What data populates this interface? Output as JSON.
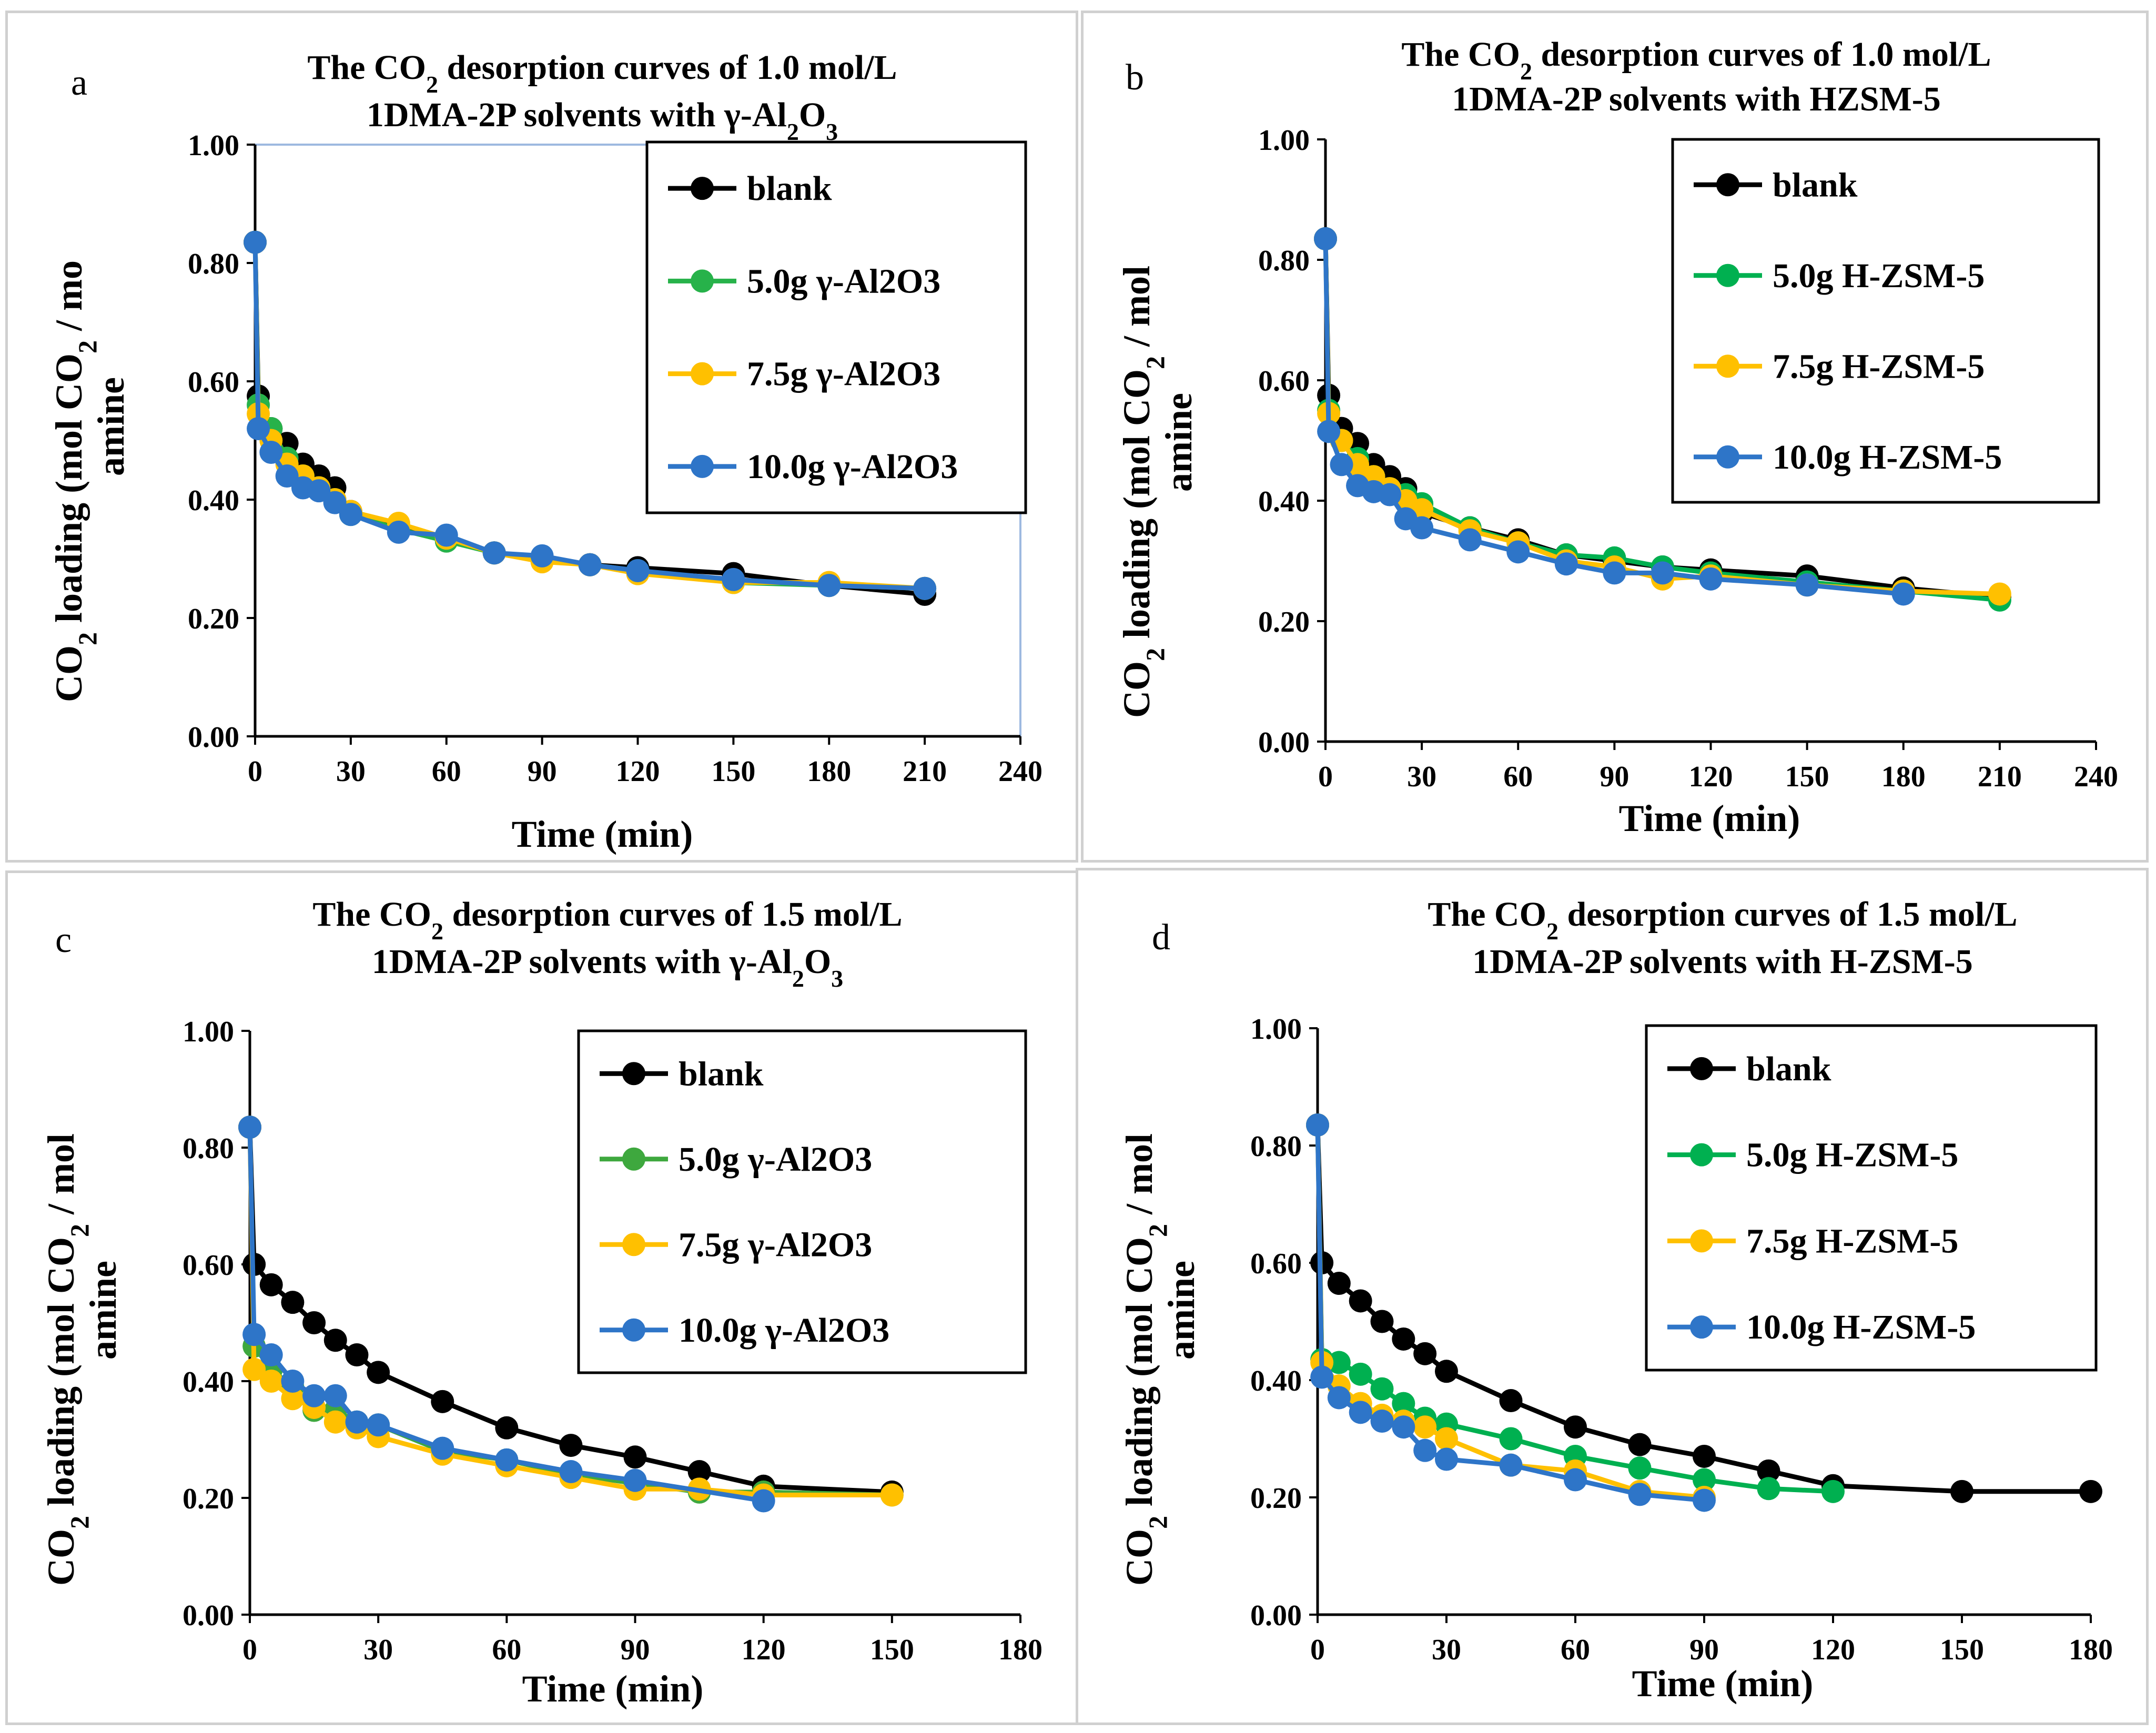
{
  "chart_data": [
    {
      "panel": "a",
      "type": "line",
      "title_line1_pre": "The CO",
      "title_line1_sub": "2",
      "title_line1_post": " desorption curves of 1.0 mol/L",
      "title_line2_pre": "1DMA-2P solvents with γ-Al",
      "title_line2_sub1": "2",
      "title_line2_mid": "O",
      "title_line2_sub2": "3",
      "xlabel": "Time (min)",
      "ylabel_pre": "CO",
      "ylabel_sub": "2",
      "ylabel_mid": " loading (mol CO",
      "ylabel_sub2": "2",
      "ylabel_post": " / mo",
      "ylabel_line2": "amine",
      "xlim": [
        0,
        240
      ],
      "ylim": [
        0,
        1.0
      ],
      "xticks": [
        "0",
        "30",
        "60",
        "90",
        "120",
        "150",
        "180",
        "210",
        "240"
      ],
      "yticks": [
        "0.00",
        "0.20",
        "0.40",
        "0.60",
        "0.80",
        "1.00"
      ],
      "series": [
        {
          "name": "blank",
          "color": "#000000",
          "x": [
            0,
            1,
            5,
            10,
            15,
            20,
            25,
            30,
            45,
            60,
            75,
            90,
            105,
            120,
            150,
            180,
            210
          ],
          "y": [
            0.835,
            0.575,
            0.52,
            0.495,
            0.46,
            0.44,
            0.42,
            0.38,
            0.355,
            0.335,
            0.31,
            0.3,
            0.29,
            0.285,
            0.275,
            0.255,
            0.24
          ]
        },
        {
          "name": "5.0g γ-Al2O3",
          "color": "#27b24a",
          "x": [
            0,
            1,
            5,
            10,
            15,
            20,
            25,
            30,
            45,
            60,
            75,
            90,
            105,
            120,
            150,
            180,
            210
          ],
          "y": [
            0.835,
            0.56,
            0.52,
            0.47,
            0.44,
            0.42,
            0.4,
            0.375,
            0.35,
            0.33,
            0.31,
            0.3,
            0.29,
            0.28,
            0.26,
            0.255,
            0.25
          ]
        },
        {
          "name": "7.5g γ-Al2O3",
          "color": "#ffc000",
          "x": [
            0,
            1,
            5,
            10,
            15,
            20,
            25,
            30,
            45,
            60,
            75,
            90,
            105,
            120,
            150,
            180,
            210
          ],
          "y": [
            0.835,
            0.545,
            0.5,
            0.46,
            0.44,
            0.42,
            0.4,
            0.38,
            0.36,
            0.335,
            0.31,
            0.295,
            0.29,
            0.275,
            0.26,
            0.26,
            0.25
          ]
        },
        {
          "name": "10.0g γ-Al2O3",
          "color": "#2e75c8",
          "x": [
            0,
            1,
            5,
            10,
            15,
            20,
            25,
            30,
            45,
            60,
            75,
            90,
            105,
            120,
            150,
            180,
            210
          ],
          "y": [
            0.835,
            0.52,
            0.48,
            0.44,
            0.42,
            0.415,
            0.395,
            0.375,
            0.345,
            0.34,
            0.31,
            0.305,
            0.29,
            0.28,
            0.265,
            0.255,
            0.25
          ]
        }
      ]
    },
    {
      "panel": "b",
      "type": "line",
      "title_line1_pre": "The CO",
      "title_line1_sub": "2",
      "title_line1_post": " desorption curves of 1.0 mol/L",
      "title_line2_pre": "1DMA-2P solvents with HZSM-5",
      "xlabel": "Time (min)",
      "ylabel_pre": "CO",
      "ylabel_sub": "2",
      "ylabel_mid": " loading (mol CO",
      "ylabel_sub2": "2",
      "ylabel_post": " / mol",
      "ylabel_line2": "amine",
      "xlim": [
        0,
        240
      ],
      "ylim": [
        0,
        1.0
      ],
      "xticks": [
        "0",
        "30",
        "60",
        "90",
        "120",
        "150",
        "180",
        "210",
        "240"
      ],
      "yticks": [
        "0.00",
        "0.20",
        "0.40",
        "0.60",
        "0.80",
        "1.00"
      ],
      "series": [
        {
          "name": "blank",
          "color": "#000000",
          "x": [
            0,
            1,
            5,
            10,
            15,
            20,
            25,
            30,
            45,
            60,
            75,
            90,
            105,
            120,
            150,
            180,
            210
          ],
          "y": [
            0.835,
            0.575,
            0.52,
            0.495,
            0.46,
            0.44,
            0.42,
            0.38,
            0.355,
            0.335,
            0.31,
            0.3,
            0.29,
            0.285,
            0.275,
            0.255,
            0.24
          ]
        },
        {
          "name": "5.0g H-ZSM-5",
          "color": "#00b050",
          "x": [
            0,
            1,
            5,
            10,
            15,
            20,
            25,
            30,
            45,
            60,
            75,
            90,
            105,
            120,
            150,
            180,
            210
          ],
          "y": [
            0.835,
            0.55,
            0.5,
            0.47,
            0.44,
            0.42,
            0.41,
            0.395,
            0.355,
            0.33,
            0.31,
            0.305,
            0.29,
            0.28,
            0.265,
            0.25,
            0.235
          ]
        },
        {
          "name": "7.5g H-ZSM-5",
          "color": "#ffc000",
          "x": [
            0,
            1,
            5,
            10,
            15,
            20,
            25,
            30,
            45,
            60,
            75,
            90,
            105,
            120,
            150,
            180,
            210
          ],
          "y": [
            0.835,
            0.545,
            0.5,
            0.46,
            0.44,
            0.42,
            0.4,
            0.385,
            0.35,
            0.33,
            0.3,
            0.29,
            0.27,
            0.275,
            0.26,
            0.25,
            0.245
          ]
        },
        {
          "name": "10.0g H-ZSM-5",
          "color": "#2e75c8",
          "x": [
            0,
            1,
            5,
            10,
            15,
            20,
            25,
            30,
            45,
            60,
            75,
            90,
            105,
            120,
            150,
            180
          ],
          "y": [
            0.835,
            0.515,
            0.46,
            0.425,
            0.415,
            0.41,
            0.37,
            0.355,
            0.335,
            0.315,
            0.295,
            0.28,
            0.28,
            0.27,
            0.26,
            0.245
          ]
        }
      ]
    },
    {
      "panel": "c",
      "type": "line",
      "title_line1_pre": "The CO",
      "title_line1_sub": "2",
      "title_line1_post": " desorption curves of 1.5 mol/L",
      "title_line2_pre": "1DMA-2P solvents with γ-Al",
      "title_line2_sub1": "2",
      "title_line2_mid": "O",
      "title_line2_sub2": "3",
      "xlabel": "Time (min)",
      "ylabel_pre": "CO",
      "ylabel_sub": "2",
      "ylabel_mid": " loading (mol CO",
      "ylabel_sub2": "2",
      "ylabel_post": " / mol",
      "ylabel_line2": "amine",
      "xlim": [
        0,
        180
      ],
      "ylim": [
        0,
        1.0
      ],
      "xticks": [
        "0",
        "30",
        "60",
        "90",
        "120",
        "150",
        "180"
      ],
      "yticks": [
        "0.00",
        "0.20",
        "0.40",
        "0.60",
        "0.80",
        "1.00"
      ],
      "series": [
        {
          "name": "blank",
          "color": "#000000",
          "x": [
            0,
            1,
            5,
            10,
            15,
            20,
            25,
            30,
            45,
            60,
            75,
            90,
            105,
            120,
            150
          ],
          "y": [
            0.835,
            0.6,
            0.565,
            0.535,
            0.5,
            0.47,
            0.445,
            0.415,
            0.365,
            0.32,
            0.29,
            0.27,
            0.245,
            0.22,
            0.21
          ]
        },
        {
          "name": "5.0g γ-Al2O3",
          "color": "#3ea83e",
          "x": [
            0,
            1,
            5,
            10,
            15,
            20,
            25,
            30,
            45,
            60,
            75,
            90,
            105,
            120,
            150
          ],
          "y": [
            0.835,
            0.46,
            0.42,
            0.39,
            0.35,
            0.35,
            0.33,
            0.325,
            0.28,
            0.265,
            0.24,
            0.225,
            0.21,
            0.21,
            0.205
          ]
        },
        {
          "name": "7.5g γ-Al2O3",
          "color": "#ffc000",
          "x": [
            0,
            1,
            5,
            10,
            15,
            20,
            25,
            30,
            45,
            60,
            75,
            90,
            105,
            120,
            150
          ],
          "y": [
            0.835,
            0.42,
            0.4,
            0.37,
            0.355,
            0.33,
            0.32,
            0.305,
            0.275,
            0.255,
            0.235,
            0.215,
            0.215,
            0.205,
            0.205
          ]
        },
        {
          "name": "10.0g γ-Al2O3",
          "color": "#2e75c8",
          "x": [
            0,
            1,
            5,
            10,
            15,
            20,
            25,
            30,
            45,
            60,
            75,
            90,
            120
          ],
          "y": [
            0.835,
            0.48,
            0.445,
            0.4,
            0.375,
            0.375,
            0.33,
            0.325,
            0.285,
            0.265,
            0.245,
            0.23,
            0.195
          ]
        }
      ]
    },
    {
      "panel": "d",
      "type": "line",
      "title_line1_pre": "The CO",
      "title_line1_sub": "2",
      "title_line1_post": " desorption curves of 1.5 mol/L",
      "title_line2_pre": "1DMA-2P solvents with H-ZSM-5",
      "xlabel": "Time (min)",
      "ylabel_pre": "CO",
      "ylabel_sub": "2",
      "ylabel_mid": " loading (mol CO",
      "ylabel_sub2": "2",
      "ylabel_post": " / mol",
      "ylabel_line2": "amine",
      "xlim": [
        0,
        180
      ],
      "ylim": [
        0,
        1.0
      ],
      "xticks": [
        "0",
        "30",
        "60",
        "90",
        "120",
        "150",
        "180"
      ],
      "yticks": [
        "0.00",
        "0.20",
        "0.40",
        "0.60",
        "0.80",
        "1.00"
      ],
      "series": [
        {
          "name": "blank",
          "color": "#000000",
          "x": [
            0,
            1,
            5,
            10,
            15,
            20,
            25,
            30,
            45,
            60,
            75,
            90,
            105,
            120,
            150,
            180
          ],
          "y": [
            0.835,
            0.6,
            0.565,
            0.535,
            0.5,
            0.47,
            0.445,
            0.415,
            0.365,
            0.32,
            0.29,
            0.27,
            0.245,
            0.22,
            0.21,
            0.21
          ]
        },
        {
          "name": "5.0g H-ZSM-5",
          "color": "#00b050",
          "x": [
            0,
            1,
            5,
            10,
            15,
            20,
            25,
            30,
            45,
            60,
            75,
            90,
            105,
            120
          ],
          "y": [
            0.835,
            0.435,
            0.43,
            0.41,
            0.385,
            0.36,
            0.335,
            0.325,
            0.3,
            0.27,
            0.25,
            0.23,
            0.215,
            0.21
          ]
        },
        {
          "name": "7.5g H-ZSM-5",
          "color": "#ffc000",
          "x": [
            0,
            1,
            5,
            10,
            15,
            20,
            25,
            30,
            45,
            60,
            75,
            90
          ],
          "y": [
            0.835,
            0.43,
            0.39,
            0.36,
            0.34,
            0.33,
            0.32,
            0.3,
            0.255,
            0.245,
            0.21,
            0.2
          ]
        },
        {
          "name": "10.0g H-ZSM-5",
          "color": "#2e75c8",
          "x": [
            0,
            1,
            5,
            10,
            15,
            20,
            25,
            30,
            45,
            60,
            75,
            90
          ],
          "y": [
            0.835,
            0.405,
            0.37,
            0.345,
            0.33,
            0.32,
            0.28,
            0.265,
            0.255,
            0.23,
            0.205,
            0.195
          ]
        }
      ]
    }
  ]
}
